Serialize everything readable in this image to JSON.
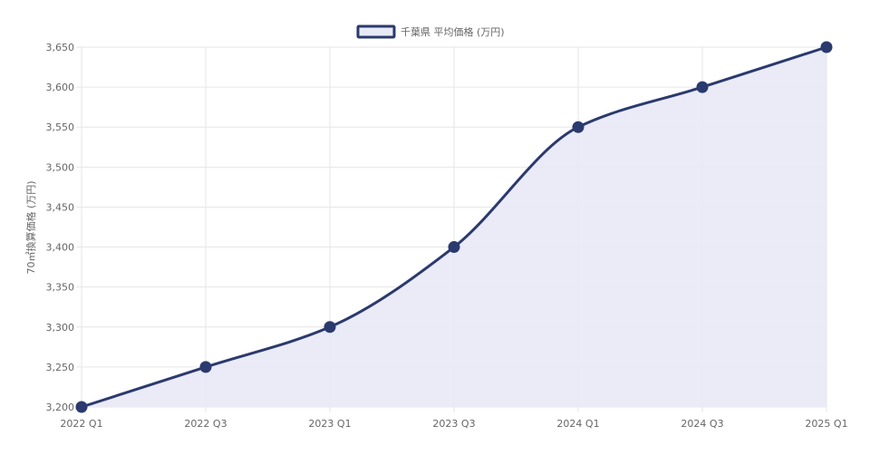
{
  "chart_data": {
    "type": "line",
    "categories": [
      "2022 Q1",
      "2022 Q3",
      "2023 Q1",
      "2023 Q3",
      "2024 Q1",
      "2024 Q3",
      "2025 Q1"
    ],
    "series": [
      {
        "name": "千葉県 平均価格 (万円)",
        "values": [
          3200,
          3250,
          3300,
          3400,
          3550,
          3600,
          3650
        ]
      }
    ],
    "ylabel": "70㎡換算価格 (万円)",
    "xlabel": "",
    "ylim": [
      3200,
      3650
    ],
    "yticks": [
      3200,
      3250,
      3300,
      3350,
      3400,
      3450,
      3500,
      3550,
      3600,
      3650
    ],
    "ytick_labels": [
      "3,200",
      "3,250",
      "3,300",
      "3,350",
      "3,400",
      "3,450",
      "3,500",
      "3,550",
      "3,600",
      "3,650"
    ],
    "fill_area": true,
    "smooth": true,
    "grid": true,
    "legend_position": "top-center",
    "colors": {
      "line": "#2b3a6e",
      "fill": "#e8e9f6",
      "point": "#2b3a6e",
      "grid": "#e6e6e6",
      "text": "#666666"
    }
  }
}
